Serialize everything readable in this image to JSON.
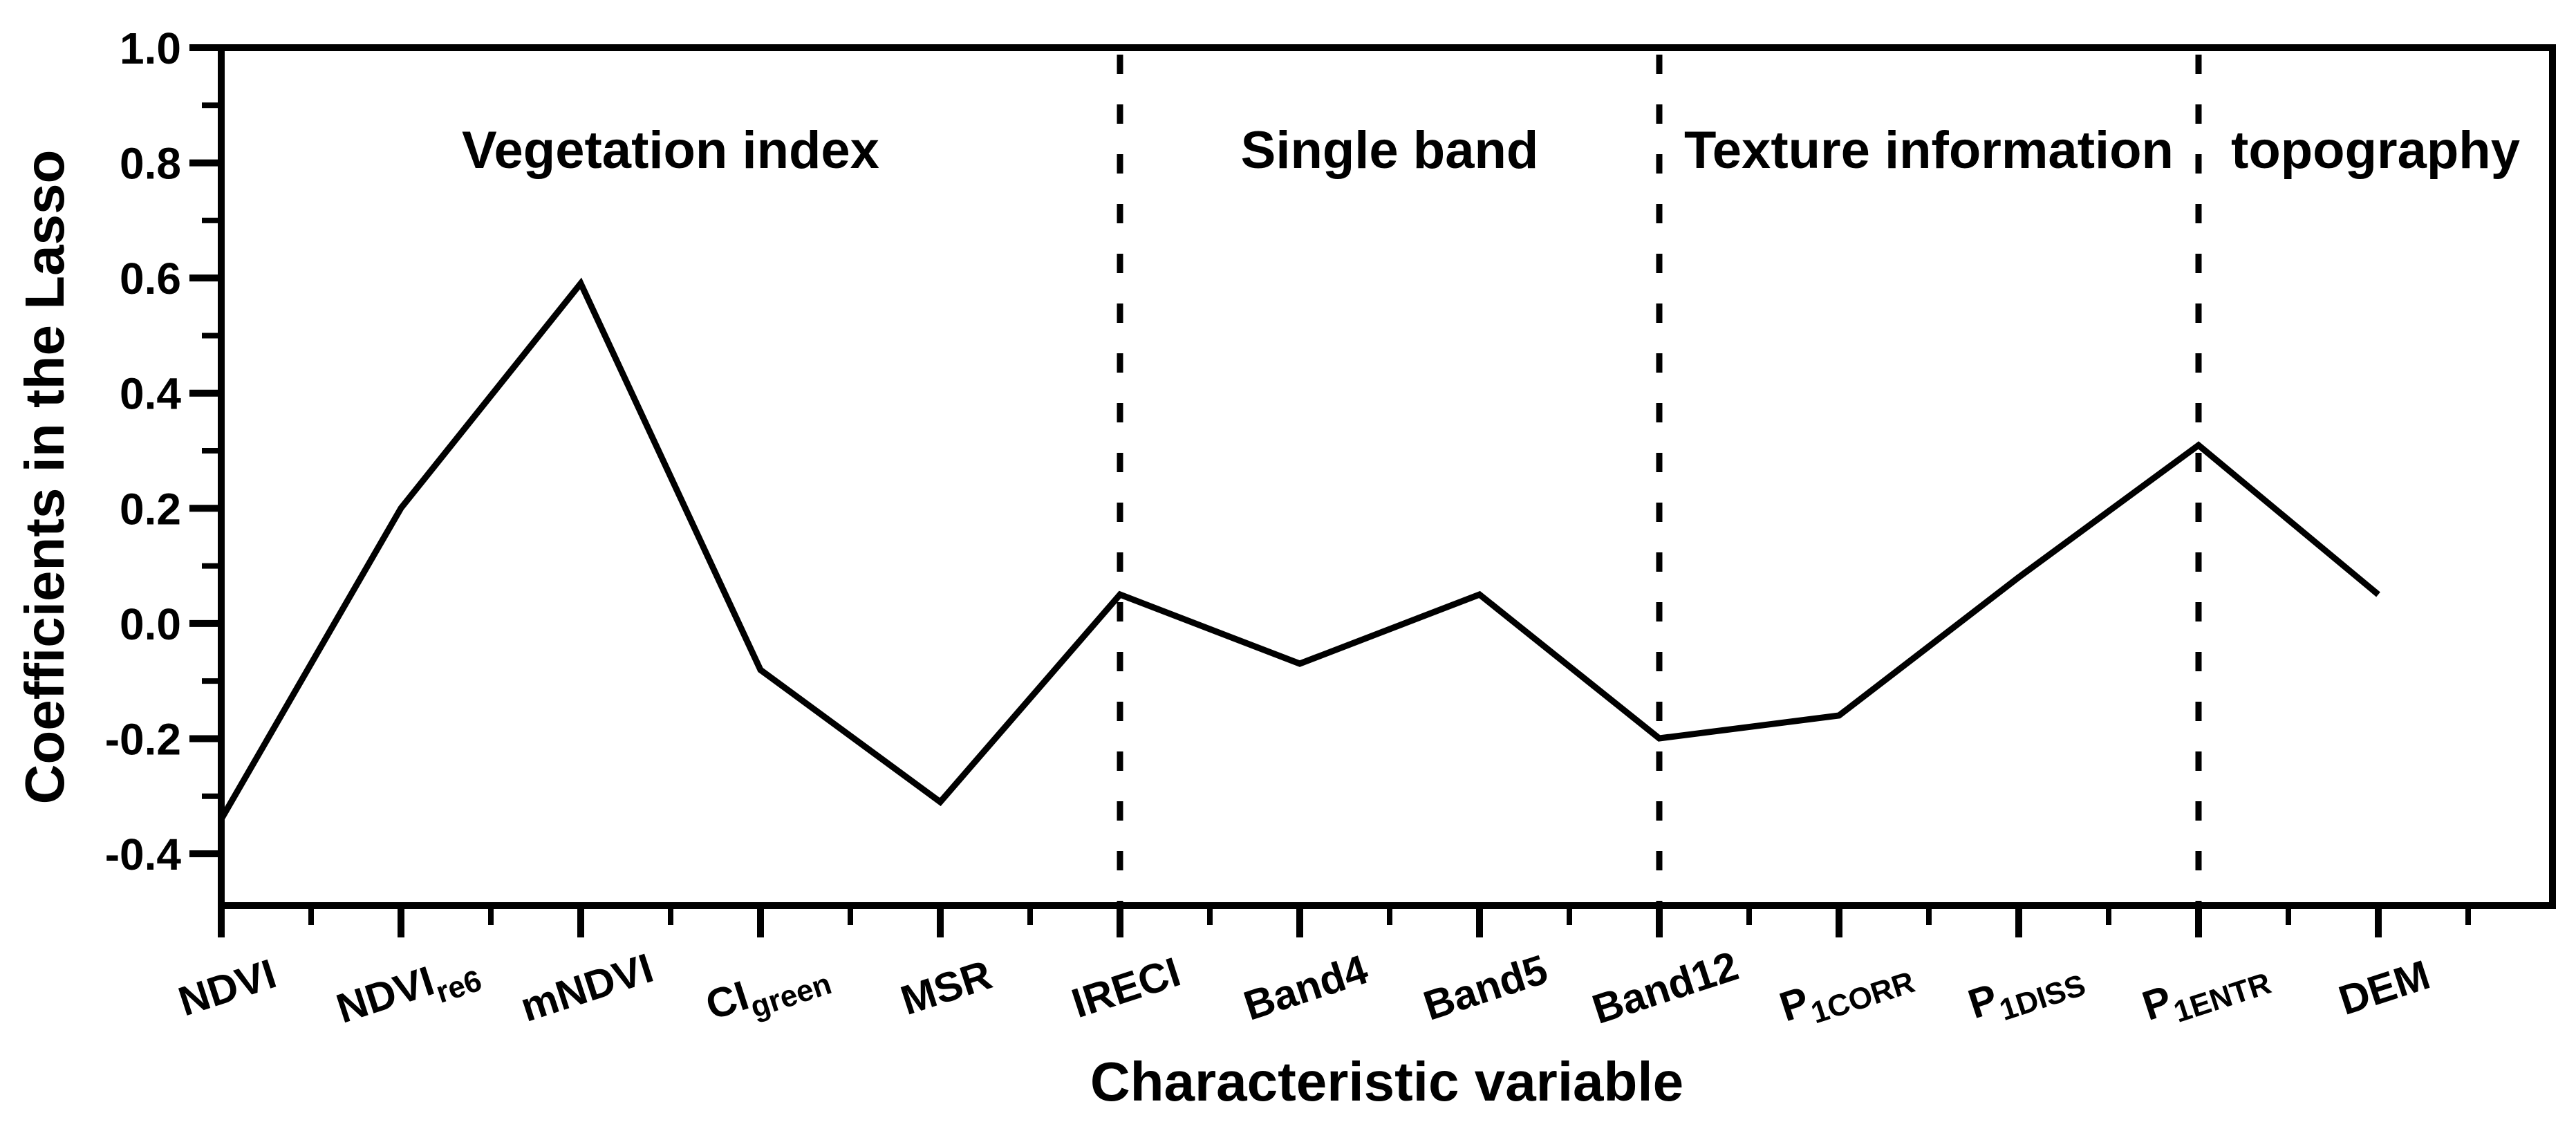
{
  "chart_data": {
    "type": "line",
    "title": "",
    "xlabel": "Characteristic variable",
    "ylabel": "Coefficients in the Lasso",
    "categories": [
      {
        "main": "NDVI",
        "sub": ""
      },
      {
        "main": "NDVI",
        "sub": "re6"
      },
      {
        "main": "mNDVI",
        "sub": ""
      },
      {
        "main": "CI",
        "sub": "green"
      },
      {
        "main": "MSR",
        "sub": ""
      },
      {
        "main": "IRECI",
        "sub": ""
      },
      {
        "main": "Band4",
        "sub": ""
      },
      {
        "main": "Band5",
        "sub": ""
      },
      {
        "main": "Band12",
        "sub": ""
      },
      {
        "main": "P",
        "sub": "1CORR"
      },
      {
        "main": "P",
        "sub": "1DISS"
      },
      {
        "main": "P",
        "sub": "1ENTR"
      },
      {
        "main": "DEM",
        "sub": ""
      }
    ],
    "series": [
      {
        "name": "Coefficients in the Lasso",
        "values": [
          -0.34,
          0.2,
          0.59,
          -0.08,
          -0.31,
          0.05,
          -0.07,
          0.05,
          -0.2,
          -0.16,
          0.08,
          0.31,
          0.05
        ]
      }
    ],
    "ylim": [
      -0.49,
      1.0
    ],
    "y_tick_labels": [
      "1.0",
      "0.8",
      "0.6",
      "0.4",
      "0.2",
      "0.0",
      "-0.2",
      "-0.4"
    ],
    "sections": [
      {
        "label": "Vegetation index"
      },
      {
        "label": "Single band"
      },
      {
        "label": "Texture information"
      },
      {
        "label": "topography"
      }
    ],
    "dividers_at_category": [
      5,
      8,
      11
    ],
    "line_color": "#000000",
    "axis_color": "#000000",
    "background_color": "#ffffff",
    "grid": false,
    "legend": "none",
    "divider_style": "dotted"
  }
}
